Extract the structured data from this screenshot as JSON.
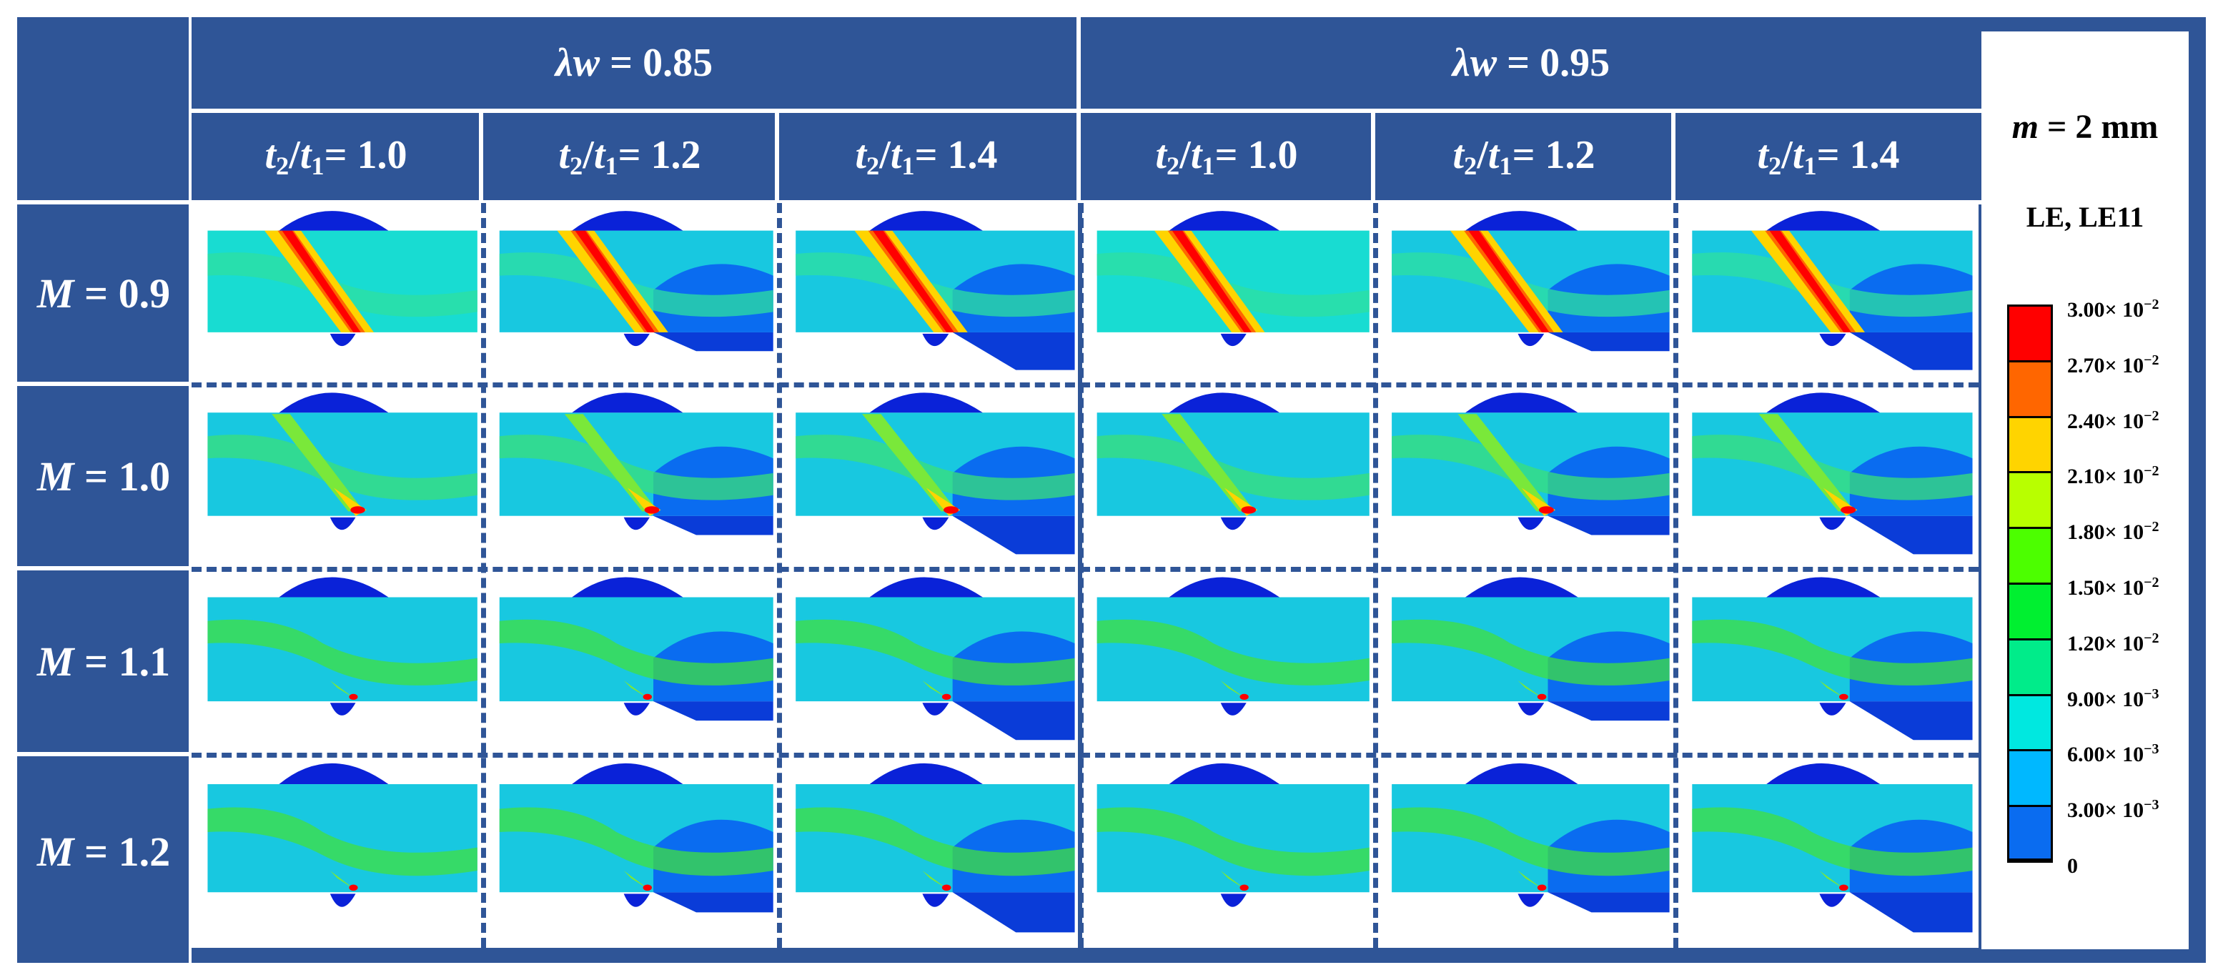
{
  "figure": {
    "group_headers": [
      {
        "symbol": "λw",
        "eq": " = ",
        "value": "0.85"
      },
      {
        "symbol": "λw",
        "eq": " = ",
        "value": "0.95"
      }
    ],
    "column_headers": [
      {
        "num": "t",
        "num_sub": "2",
        "slash": "/",
        "den": "t",
        "den_sub": "1",
        "eq": "= ",
        "value": "1.0"
      },
      {
        "num": "t",
        "num_sub": "2",
        "slash": "/",
        "den": "t",
        "den_sub": "1",
        "eq": "= ",
        "value": "1.2"
      },
      {
        "num": "t",
        "num_sub": "2",
        "slash": "/",
        "den": "t",
        "den_sub": "1",
        "eq": "= ",
        "value": "1.4"
      },
      {
        "num": "t",
        "num_sub": "2",
        "slash": "/",
        "den": "t",
        "den_sub": "1",
        "eq": "= ",
        "value": "1.0"
      },
      {
        "num": "t",
        "num_sub": "2",
        "slash": "/",
        "den": "t",
        "den_sub": "1",
        "eq": "= ",
        "value": "1.2"
      },
      {
        "num": "t",
        "num_sub": "2",
        "slash": "/",
        "den": "t",
        "den_sub": "1",
        "eq": "= ",
        "value": "1.4"
      }
    ],
    "row_headers": [
      {
        "symbol": "M",
        "eq": " = ",
        "value": "0.9"
      },
      {
        "symbol": "M",
        "eq": " = ",
        "value": "1.0"
      },
      {
        "symbol": "M",
        "eq": " = ",
        "value": "1.1"
      },
      {
        "symbol": "M",
        "eq": " = ",
        "value": "1.2"
      }
    ]
  },
  "legend": {
    "param_symbol": "m",
    "param_rest": " = 2 mm",
    "variable": "LE, LE11",
    "levels": [
      {
        "label": "3.00× 10",
        "exp": "−2",
        "color": "#ff0000"
      },
      {
        "label": "2.70× 10",
        "exp": "−2",
        "color": "#ff6600"
      },
      {
        "label": "2.40× 10",
        "exp": "−2",
        "color": "#ffd400"
      },
      {
        "label": "2.10× 10",
        "exp": "−2",
        "color": "#b8ff00"
      },
      {
        "label": "1.80× 10",
        "exp": "−2",
        "color": "#4cff00"
      },
      {
        "label": "1.50× 10",
        "exp": "−2",
        "color": "#00f030"
      },
      {
        "label": "1.20× 10",
        "exp": "−2",
        "color": "#00ec8a"
      },
      {
        "label": "9.00× 10",
        "exp": "−3",
        "color": "#00e8e0"
      },
      {
        "label": "6.00× 10",
        "exp": "−3",
        "color": "#00b8ff"
      },
      {
        "label": "3.00× 10",
        "exp": "−3",
        "color": "#0a6cf0"
      },
      {
        "label": "0",
        "exp": "",
        "color": "#0010ff"
      }
    ]
  },
  "cells": [
    {
      "row": 0,
      "col": 0,
      "band": 0.9,
      "color_bg": "#18dcd2",
      "color_mid": "#2ee0a0",
      "t_ratio": 1.0
    },
    {
      "row": 0,
      "col": 1,
      "band": 0.9,
      "color_bg": "#18c8e0",
      "color_mid": "#2ee0a0",
      "t_ratio": 1.2
    },
    {
      "row": 0,
      "col": 2,
      "band": 0.9,
      "color_bg": "#18c8e0",
      "color_mid": "#2ee0a0",
      "t_ratio": 1.4
    },
    {
      "row": 0,
      "col": 3,
      "band": 1.0,
      "color_bg": "#18dcd2",
      "color_mid": "#2ee0a0",
      "t_ratio": 1.0
    },
    {
      "row": 0,
      "col": 4,
      "band": 1.0,
      "color_bg": "#18c8e0",
      "color_mid": "#2ee0a0",
      "t_ratio": 1.2
    },
    {
      "row": 0,
      "col": 5,
      "band": 1.0,
      "color_bg": "#18c8e0",
      "color_mid": "#2ee0a0",
      "t_ratio": 1.4
    },
    {
      "row": 1,
      "col": 0,
      "band": 0.55,
      "color_bg": "#18c8e0",
      "color_mid": "#3ae07a",
      "t_ratio": 1.0
    },
    {
      "row": 1,
      "col": 1,
      "band": 0.45,
      "color_bg": "#18c8e0",
      "color_mid": "#3ae07a",
      "t_ratio": 1.2
    },
    {
      "row": 1,
      "col": 2,
      "band": 0.4,
      "color_bg": "#18c8e0",
      "color_mid": "#3ae07a",
      "t_ratio": 1.4
    },
    {
      "row": 1,
      "col": 3,
      "band": 0.55,
      "color_bg": "#18c8e0",
      "color_mid": "#3ae07a",
      "t_ratio": 1.0
    },
    {
      "row": 1,
      "col": 4,
      "band": 0.5,
      "color_bg": "#18c8e0",
      "color_mid": "#3ae07a",
      "t_ratio": 1.2
    },
    {
      "row": 1,
      "col": 5,
      "band": 0.45,
      "color_bg": "#18c8e0",
      "color_mid": "#3ae07a",
      "t_ratio": 1.4
    },
    {
      "row": 2,
      "col": 0,
      "band": 0.3,
      "color_bg": "#18c8e0",
      "color_mid": "#40e040",
      "t_ratio": 1.0
    },
    {
      "row": 2,
      "col": 1,
      "band": 0.3,
      "color_bg": "#18c8e0",
      "color_mid": "#40e040",
      "t_ratio": 1.2
    },
    {
      "row": 2,
      "col": 2,
      "band": 0.25,
      "color_bg": "#18c8e0",
      "color_mid": "#40e040",
      "t_ratio": 1.4
    },
    {
      "row": 2,
      "col": 3,
      "band": 0.3,
      "color_bg": "#18c8e0",
      "color_mid": "#40e040",
      "t_ratio": 1.0
    },
    {
      "row": 2,
      "col": 4,
      "band": 0.3,
      "color_bg": "#18c8e0",
      "color_mid": "#40e040",
      "t_ratio": 1.2
    },
    {
      "row": 2,
      "col": 5,
      "band": 0.25,
      "color_bg": "#18c8e0",
      "color_mid": "#40e040",
      "t_ratio": 1.4
    },
    {
      "row": 3,
      "col": 0,
      "band": 0.2,
      "color_bg": "#18c8e0",
      "color_mid": "#40e040",
      "t_ratio": 1.0
    },
    {
      "row": 3,
      "col": 1,
      "band": 0.2,
      "color_bg": "#18c8e0",
      "color_mid": "#40e040",
      "t_ratio": 1.2
    },
    {
      "row": 3,
      "col": 2,
      "band": 0.15,
      "color_bg": "#18c8e0",
      "color_mid": "#40e040",
      "t_ratio": 1.4
    },
    {
      "row": 3,
      "col": 3,
      "band": 0.15,
      "color_bg": "#18c8e0",
      "color_mid": "#40e040",
      "t_ratio": 1.0
    },
    {
      "row": 3,
      "col": 4,
      "band": 0.15,
      "color_bg": "#18c8e0",
      "color_mid": "#40e040",
      "t_ratio": 1.2
    },
    {
      "row": 3,
      "col": 5,
      "band": 0.15,
      "color_bg": "#18c8e0",
      "color_mid": "#40e040",
      "t_ratio": 1.4
    }
  ]
}
